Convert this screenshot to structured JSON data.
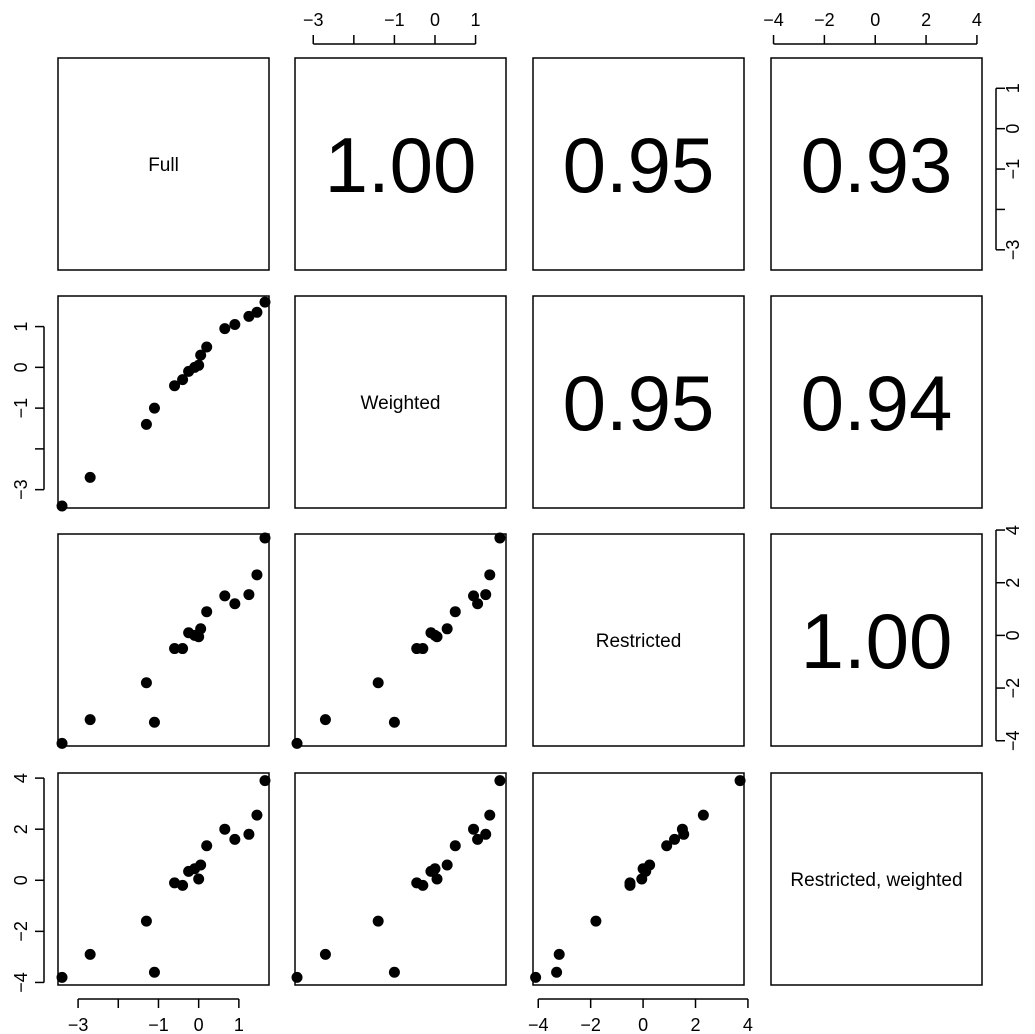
{
  "chart_data": {
    "type": "scatter",
    "title": "",
    "variables": [
      {
        "name": "Full",
        "ticks": [
          -3,
          -2,
          -1,
          0,
          1
        ],
        "tick_labels": [
          "-3",
          "",
          "-1",
          "0",
          "1"
        ],
        "lim": [
          -3.5,
          1.75
        ]
      },
      {
        "name": "Weighted",
        "ticks": [
          -3,
          -2,
          -1,
          0,
          1
        ],
        "tick_labels": [
          "-3",
          "",
          "-1",
          "0",
          "1"
        ],
        "lim": [
          -3.45,
          1.75
        ]
      },
      {
        "name": "Restricted",
        "ticks": [
          -4,
          -2,
          0,
          2,
          4
        ],
        "tick_labels": [
          "-4",
          "-2",
          "0",
          "2",
          "4"
        ],
        "lim": [
          -4.2,
          3.85
        ]
      },
      {
        "name": "Restricted, weighted",
        "ticks": [
          -4,
          -2,
          0,
          2,
          4
        ],
        "tick_labels": [
          "-4",
          "-2",
          "0",
          "2",
          "4"
        ],
        "lim": [
          -4.1,
          4.2
        ]
      }
    ],
    "correlations": [
      {
        "row": 0,
        "col": 1,
        "value": "1.00"
      },
      {
        "row": 0,
        "col": 2,
        "value": "0.95"
      },
      {
        "row": 0,
        "col": 3,
        "value": "0.93"
      },
      {
        "row": 1,
        "col": 2,
        "value": "0.95"
      },
      {
        "row": 1,
        "col": 3,
        "value": "0.94"
      },
      {
        "row": 2,
        "col": 3,
        "value": "1.00"
      }
    ],
    "observations": [
      {
        "v": [
          -3.4,
          -3.4,
          -4.1,
          -3.8
        ]
      },
      {
        "v": [
          -2.7,
          -2.7,
          -3.2,
          -2.9
        ]
      },
      {
        "v": [
          -1.3,
          -1.4,
          -1.8,
          -1.6
        ]
      },
      {
        "v": [
          -1.1,
          -1.0,
          -3.3,
          -3.6
        ]
      },
      {
        "v": [
          -0.6,
          -0.45,
          -0.5,
          -0.1
        ]
      },
      {
        "v": [
          -0.4,
          -0.3,
          -0.5,
          -0.2
        ]
      },
      {
        "v": [
          -0.25,
          -0.1,
          0.1,
          0.35
        ]
      },
      {
        "v": [
          -0.1,
          0.0,
          0.0,
          0.45
        ]
      },
      {
        "v": [
          0.0,
          0.05,
          -0.05,
          0.05
        ]
      },
      {
        "v": [
          0.05,
          0.3,
          0.25,
          0.6
        ]
      },
      {
        "v": [
          0.2,
          0.5,
          0.9,
          1.35
        ]
      },
      {
        "v": [
          0.65,
          0.95,
          1.5,
          2.0
        ]
      },
      {
        "v": [
          0.9,
          1.05,
          1.2,
          1.6
        ]
      },
      {
        "v": [
          1.25,
          1.25,
          1.55,
          1.8
        ]
      },
      {
        "v": [
          1.45,
          1.35,
          2.3,
          2.55
        ]
      },
      {
        "v": [
          1.65,
          1.6,
          3.7,
          3.9
        ]
      }
    ]
  }
}
